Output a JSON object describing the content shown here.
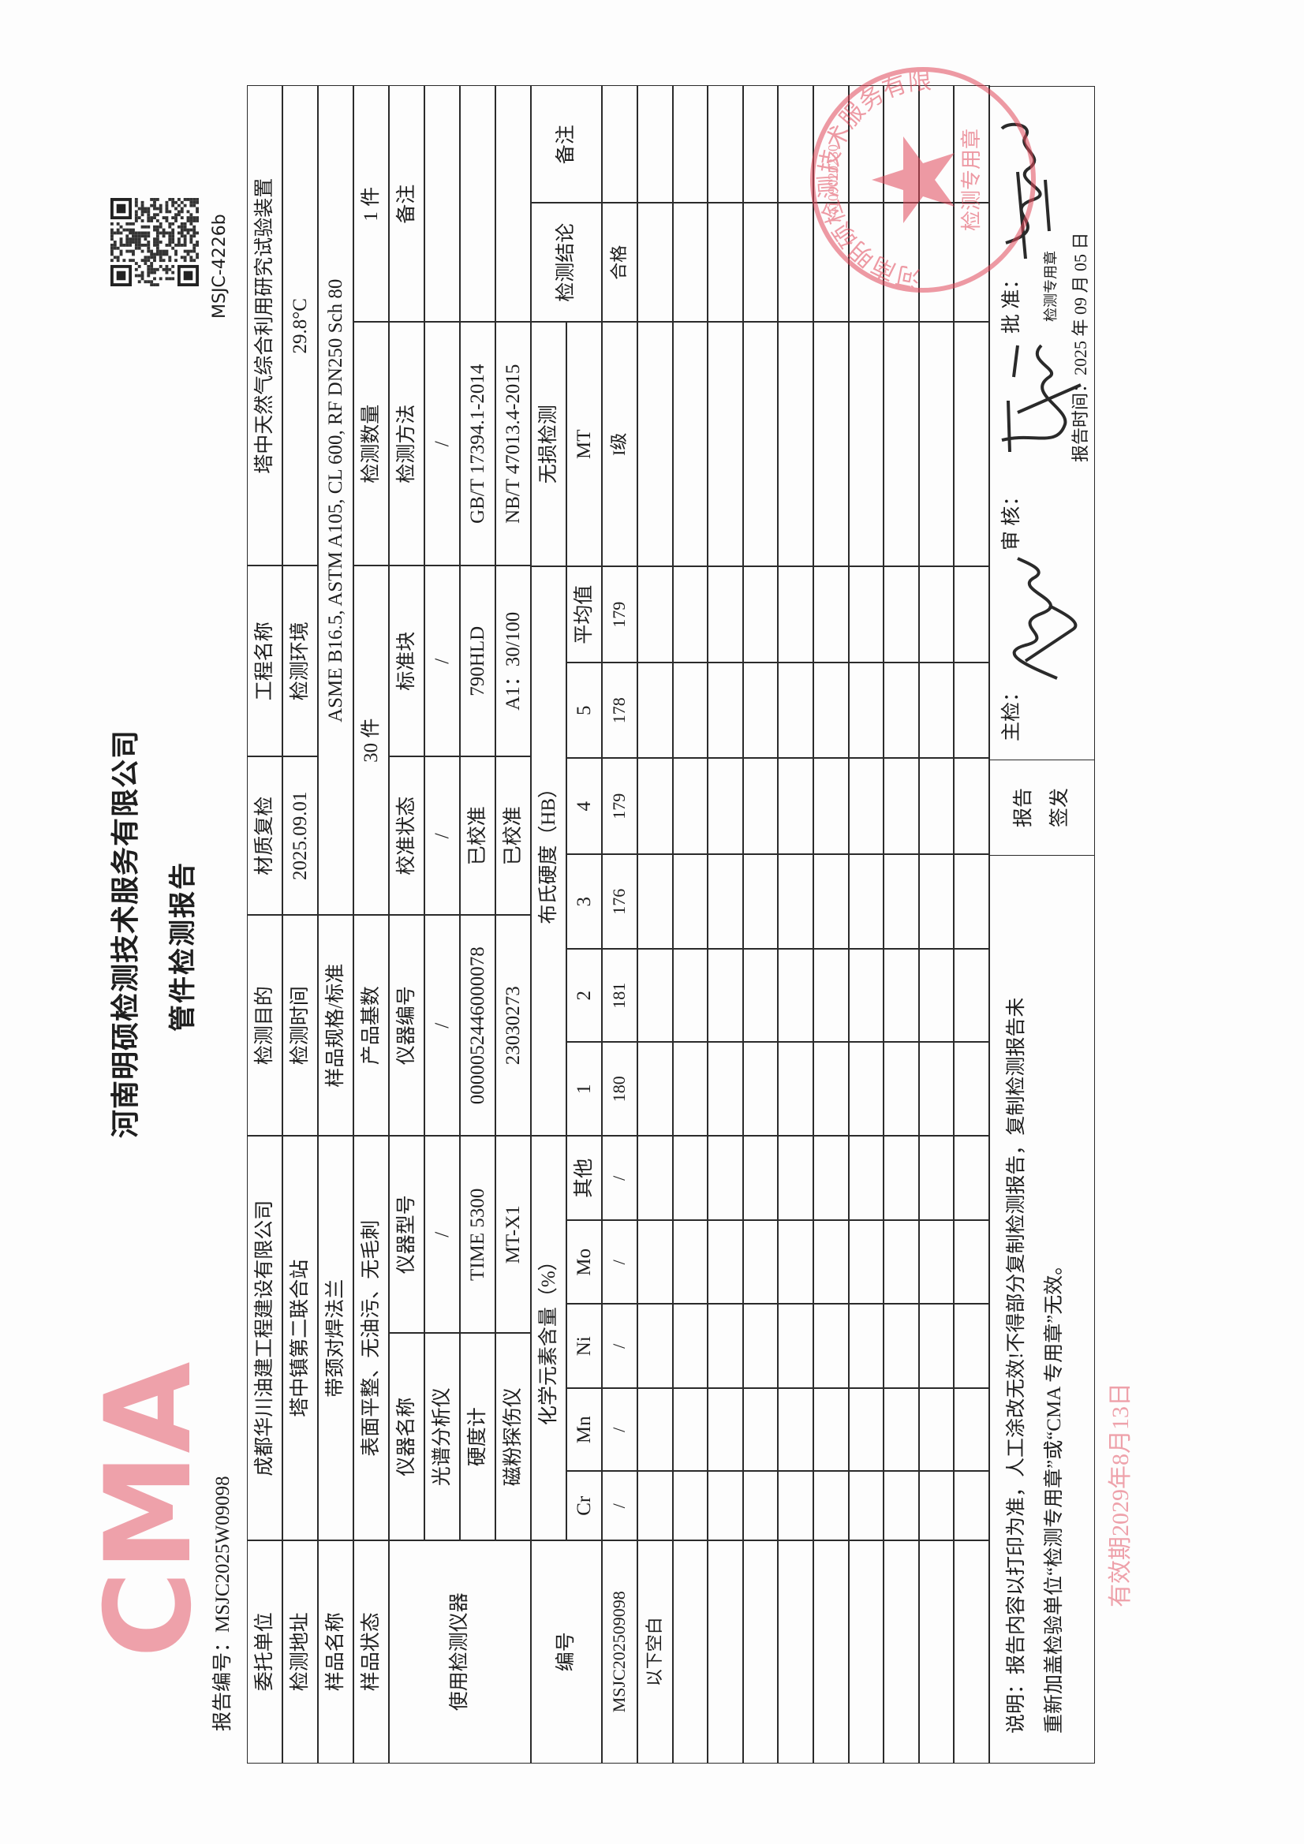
{
  "header": {
    "company": "河南明硕检测技术服务有限公司",
    "title": "管件检测报告",
    "report_no_label": "报告编号：",
    "report_no": "MSJC2025W09098",
    "form_code": "MSJC-4226b"
  },
  "info": {
    "client_label": "委托单位",
    "client": "成都华川油建工程建设有限公司",
    "purpose_label": "检测目的",
    "purpose": "材质复检",
    "project_label": "工程名称",
    "project": "塔中天然气综合利用研究试验装置",
    "address_label": "检测地址",
    "address": "塔中镇第二联合站",
    "test_date_label": "检测时间",
    "test_date": "2025.09.01",
    "environment_label": "检测环境",
    "environment": "29.8°C",
    "sample_name_label": "样品名称",
    "sample_name": "带颈对焊法兰",
    "spec_label": "样品规格/标准",
    "spec": "ASME B16.5, ASTM A105, CL 600, RF DN250 Sch 80",
    "sample_state_label": "样品状态",
    "sample_state": "表面平整、无油污、无毛刺",
    "base_qty_label": "产品基数",
    "base_qty": "30 件",
    "test_qty_label": "检测数量",
    "test_qty": "1 件"
  },
  "instruments": {
    "label": "使用检测仪器",
    "headers": [
      "仪器名称",
      "仪器型号",
      "仪器编号",
      "校准状态",
      "标准块",
      "检测方法",
      "备注"
    ],
    "rows": [
      [
        "光谱分析仪",
        "/",
        "/",
        "/",
        "/",
        "/",
        ""
      ],
      [
        "硬度计",
        "TIME 5300",
        "0000052446000078",
        "已校准",
        "790HLD",
        "GB/T 17394.1-2014",
        ""
      ],
      [
        "磁粉探伤仪",
        "MT-X1",
        "23030273",
        "已校准",
        "A1：30/100",
        "NB/T 47013.4-2015",
        ""
      ]
    ]
  },
  "results": {
    "id_label": "编号",
    "chem_label": "化学元素含量（%）",
    "chem_headers": [
      "Cr",
      "Mn",
      "Ni",
      "Mo",
      "其他"
    ],
    "hb_label": "布氏硬度（HB）",
    "hb_headers": [
      "1",
      "2",
      "3",
      "4",
      "5",
      "平均值"
    ],
    "ndt_label": "无损检测",
    "ndt_method": "MT",
    "conclusion_label": "检测结论",
    "remark_label": "备注",
    "rows": [
      {
        "id": "MSJC202509098",
        "chem": [
          "/",
          "/",
          "/",
          "/",
          "/"
        ],
        "hb": [
          "180",
          "181",
          "176",
          "179",
          "178",
          "179"
        ],
        "ndt": "I级",
        "conclusion": "合格",
        "remark": ""
      }
    ],
    "end_note": "以下空白"
  },
  "footer": {
    "note_line1": "说明：报告内容以打印为准，人工涂改无效!不得部分复制检测报告，复制检测报告未",
    "note_line2": "重新加盖检验单位“检测专用章”或“CMA 专用章”无效。",
    "issue_label_1": "报告",
    "issue_label_2": "签发",
    "inspector_label": "主检：",
    "reviewer_label": "审 核：",
    "approver_label": "批 准：",
    "seal_note": "检测专用章",
    "report_date": "报告时间：2025 年 09 月 05 日"
  },
  "stamps": {
    "cma_lettering": "CMA",
    "cma_validity": "有效期2029年8月13日",
    "company_seal_text": "河南明硕检测技术服务有限公司",
    "company_seal_center": "检测专用章",
    "company_seal_number": "4109020230",
    "color": "#e0485a"
  }
}
